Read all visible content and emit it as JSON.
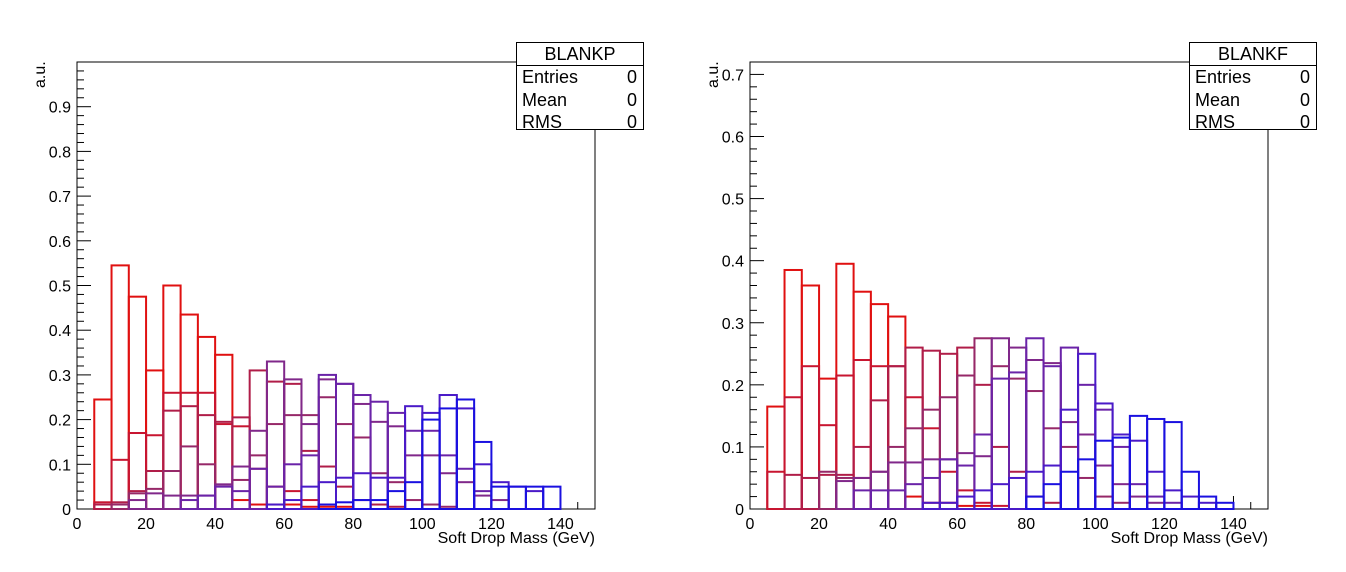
{
  "chart_data": [
    {
      "type": "step-histogram",
      "stats_box": {
        "title": "BLANKP",
        "rows": [
          {
            "label": "Entries",
            "value": "0"
          },
          {
            "label": "Mean",
            "value": "0"
          },
          {
            "label": "RMS",
            "value": "0"
          }
        ]
      },
      "xlabel": "Soft Drop Mass (GeV)",
      "ylabel": "a.u.",
      "xlim": [
        0,
        150
      ],
      "ylim": [
        0,
        1.0
      ],
      "x_ticks": [
        0,
        20,
        40,
        60,
        80,
        100,
        120,
        140
      ],
      "y_ticks": [
        0,
        0.1,
        0.2,
        0.3,
        0.4,
        0.5,
        0.6,
        0.7,
        0.8,
        0.9
      ],
      "bin_edges": [
        5,
        10,
        15,
        20,
        25,
        30,
        35,
        40,
        45,
        50,
        55,
        60,
        65,
        70,
        75,
        80,
        85,
        90,
        95,
        100,
        105,
        110,
        115,
        120,
        125,
        130,
        135,
        140
      ],
      "series": [
        {
          "color": "#e01010",
          "values": [
            0.245,
            0.545,
            0.475,
            0.31,
            0.5,
            0.435,
            0.385,
            0.345,
            0.02,
            0.01,
            0.01,
            0.01,
            0.005,
            0.005,
            0.005,
            0.0,
            0.0,
            0.0,
            0.0,
            0.0,
            0.0,
            0.0,
            0.0,
            0.0,
            0.0,
            0.0,
            0.0
          ]
        },
        {
          "color": "#c81530",
          "values": [
            0.015,
            0.11,
            0.17,
            0.165,
            0.26,
            0.26,
            0.26,
            0.19,
            0.185,
            0.09,
            0.05,
            0.04,
            0.02,
            0.01,
            0.0,
            0.0,
            0.0,
            0.0,
            0.0,
            0.0,
            0.0,
            0.0,
            0.0,
            0.0,
            0.0,
            0.0,
            0.0
          ]
        },
        {
          "color": "#b01d48",
          "values": [
            0.01,
            0.015,
            0.04,
            0.085,
            0.22,
            0.23,
            0.21,
            0.195,
            0.205,
            0.31,
            0.285,
            0.28,
            0.13,
            0.095,
            0.05,
            0.02,
            0.01,
            0.005,
            0.0,
            0.0,
            0.0,
            0.0,
            0.0,
            0.0,
            0.0,
            0.0,
            0.0
          ]
        },
        {
          "color": "#962868",
          "values": [
            0.0,
            0.01,
            0.035,
            0.045,
            0.085,
            0.14,
            0.1,
            0.055,
            0.065,
            0.12,
            0.19,
            0.21,
            0.21,
            0.25,
            0.19,
            0.16,
            0.08,
            0.06,
            0.02,
            0.01,
            0.005,
            0.0,
            0.0,
            0.0,
            0.0,
            0.0,
            0.0
          ]
        },
        {
          "color": "#80288a",
          "values": [
            0.0,
            0.0,
            0.02,
            0.035,
            0.03,
            0.03,
            0.03,
            0.055,
            0.095,
            0.175,
            0.33,
            0.29,
            0.19,
            0.29,
            0.28,
            0.235,
            0.195,
            0.185,
            0.12,
            0.12,
            0.08,
            0.06,
            0.03,
            0.02,
            0.0,
            0.0,
            0.0
          ]
        },
        {
          "color": "#6a23a8",
          "values": [
            0.0,
            0.0,
            0.0,
            0.0,
            0.0,
            0.02,
            0.03,
            0.05,
            0.04,
            0.09,
            0.05,
            0.1,
            0.12,
            0.3,
            0.28,
            0.255,
            0.24,
            0.215,
            0.175,
            0.175,
            0.12,
            0.09,
            0.04,
            0.0,
            0.0,
            0.0,
            0.0
          ]
        },
        {
          "color": "#4a1ac8",
          "values": [
            0.0,
            0.0,
            0.0,
            0.0,
            0.0,
            0.0,
            0.0,
            0.0,
            0.0,
            0.0,
            0.01,
            0.02,
            0.05,
            0.06,
            0.07,
            0.08,
            0.07,
            0.07,
            0.23,
            0.215,
            0.255,
            0.225,
            0.1,
            0.06,
            0.05,
            0.04,
            0.0
          ]
        },
        {
          "color": "#1a10e0",
          "values": [
            0.0,
            0.0,
            0.0,
            0.0,
            0.0,
            0.0,
            0.0,
            0.0,
            0.0,
            0.0,
            0.0,
            0.0,
            0.0,
            0.01,
            0.015,
            0.02,
            0.02,
            0.04,
            0.06,
            0.2,
            0.225,
            0.245,
            0.15,
            0.05,
            0.05,
            0.05,
            0.05
          ]
        }
      ]
    },
    {
      "type": "step-histogram",
      "stats_box": {
        "title": "BLANKF",
        "rows": [
          {
            "label": "Entries",
            "value": "0"
          },
          {
            "label": "Mean",
            "value": "0"
          },
          {
            "label": "RMS",
            "value": "0"
          }
        ]
      },
      "xlabel": "Soft Drop Mass (GeV)",
      "ylabel": "a.u.",
      "xlim": [
        0,
        150
      ],
      "ylim": [
        0,
        0.72
      ],
      "x_ticks": [
        0,
        20,
        40,
        60,
        80,
        100,
        120,
        140
      ],
      "y_ticks": [
        0,
        0.1,
        0.2,
        0.3,
        0.4,
        0.5,
        0.6,
        0.7
      ],
      "bin_edges": [
        5,
        10,
        15,
        20,
        25,
        30,
        35,
        40,
        45,
        50,
        55,
        60,
        65,
        70,
        75,
        80,
        85,
        90,
        95,
        100,
        105,
        110,
        115,
        120,
        125,
        130,
        135,
        140
      ],
      "series": [
        {
          "color": "#e01010",
          "values": [
            0.165,
            0.385,
            0.36,
            0.21,
            0.395,
            0.35,
            0.33,
            0.31,
            0.02,
            0.01,
            0.01,
            0.005,
            0.005,
            0.0,
            0.0,
            0.0,
            0.0,
            0.0,
            0.0,
            0.0,
            0.0,
            0.0,
            0.0,
            0.0,
            0.0,
            0.0,
            0.0
          ]
        },
        {
          "color": "#c81530",
          "values": [
            0.06,
            0.18,
            0.23,
            0.135,
            0.215,
            0.24,
            0.23,
            0.23,
            0.18,
            0.13,
            0.06,
            0.03,
            0.01,
            0.005,
            0.0,
            0.0,
            0.0,
            0.0,
            0.0,
            0.0,
            0.0,
            0.0,
            0.0,
            0.0,
            0.0,
            0.0,
            0.0
          ]
        },
        {
          "color": "#b01d48",
          "values": [
            0.0,
            0.055,
            0.05,
            0.055,
            0.055,
            0.1,
            0.175,
            0.23,
            0.26,
            0.255,
            0.25,
            0.26,
            0.2,
            0.1,
            0.06,
            0.02,
            0.01,
            0.0,
            0.0,
            0.0,
            0.0,
            0.0,
            0.0,
            0.0,
            0.0,
            0.0,
            0.0
          ]
        },
        {
          "color": "#962868",
          "values": [
            0.0,
            0.0,
            0.0,
            0.06,
            0.05,
            0.05,
            0.06,
            0.1,
            0.13,
            0.16,
            0.18,
            0.215,
            0.275,
            0.23,
            0.21,
            0.19,
            0.13,
            0.1,
            0.05,
            0.02,
            0.01,
            0.0,
            0.0,
            0.0,
            0.0,
            0.0,
            0.0
          ]
        },
        {
          "color": "#80288a",
          "values": [
            0.0,
            0.0,
            0.0,
            0.0,
            0.045,
            0.05,
            0.06,
            0.075,
            0.075,
            0.08,
            0.08,
            0.09,
            0.085,
            0.275,
            0.26,
            0.24,
            0.235,
            0.14,
            0.12,
            0.07,
            0.04,
            0.02,
            0.01,
            0.0,
            0.0,
            0.0,
            0.0
          ]
        },
        {
          "color": "#6a23a8",
          "values": [
            0.0,
            0.0,
            0.0,
            0.0,
            0.0,
            0.03,
            0.03,
            0.03,
            0.04,
            0.05,
            0.08,
            0.07,
            0.12,
            0.21,
            0.22,
            0.275,
            0.23,
            0.26,
            0.2,
            0.16,
            0.1,
            0.04,
            0.02,
            0.01,
            0.0,
            0.0,
            0.0
          ]
        },
        {
          "color": "#4a1ac8",
          "values": [
            0.0,
            0.0,
            0.0,
            0.0,
            0.0,
            0.0,
            0.0,
            0.0,
            0.0,
            0.01,
            0.01,
            0.02,
            0.03,
            0.04,
            0.05,
            0.06,
            0.07,
            0.16,
            0.25,
            0.17,
            0.12,
            0.11,
            0.06,
            0.03,
            0.02,
            0.01,
            0.0
          ]
        },
        {
          "color": "#1a10e0",
          "values": [
            0.0,
            0.0,
            0.0,
            0.0,
            0.0,
            0.0,
            0.0,
            0.0,
            0.0,
            0.0,
            0.0,
            0.0,
            0.0,
            0.0,
            0.0,
            0.02,
            0.04,
            0.06,
            0.08,
            0.11,
            0.115,
            0.15,
            0.145,
            0.14,
            0.06,
            0.02,
            0.01
          ]
        }
      ]
    }
  ]
}
